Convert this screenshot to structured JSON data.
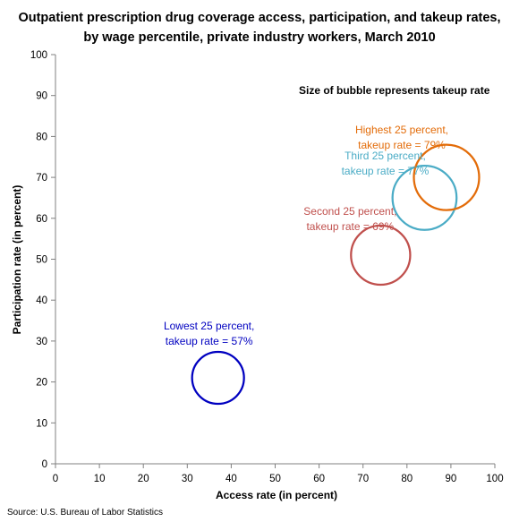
{
  "chart_data": {
    "type": "scatter",
    "title_lines": [
      "Outpatient prescription drug coverage access, participation, and takeup rates,",
      "by wage percentile, private industry workers, March 2010"
    ],
    "xlabel": "Access rate (in percent)",
    "ylabel": "Participation rate (in percent)",
    "xlim": [
      0,
      100
    ],
    "ylim": [
      0,
      100
    ],
    "x_ticks": [
      "0",
      "10",
      "20",
      "30",
      "40",
      "50",
      "60",
      "70",
      "80",
      "90",
      "100"
    ],
    "y_ticks": [
      "0",
      "10",
      "20",
      "30",
      "40",
      "50",
      "60",
      "70",
      "80",
      "90",
      "100"
    ],
    "grid": false,
    "annotation": "Size of bubble represents takeup rate",
    "series": [
      {
        "label_lines": [
          "Lowest 25 percent,",
          "takeup rate = 57%"
        ],
        "x": 37,
        "y": 21,
        "takeup": 57,
        "color": "#0000c0"
      },
      {
        "label_lines": [
          "Second 25 percent,",
          "takeup rate = 69%"
        ],
        "x": 74,
        "y": 51,
        "takeup": 69,
        "color": "#c0504d"
      },
      {
        "label_lines": [
          "Third 25 percent,",
          "takeup rate = 77%"
        ],
        "x": 84,
        "y": 65,
        "takeup": 77,
        "color": "#4bacc6"
      },
      {
        "label_lines": [
          "Highest 25 percent,",
          "takeup rate = 79%"
        ],
        "x": 89,
        "y": 70,
        "takeup": 79,
        "color": "#e36c09"
      }
    ],
    "source": "Source: U.S. Bureau of Labor Statistics"
  }
}
